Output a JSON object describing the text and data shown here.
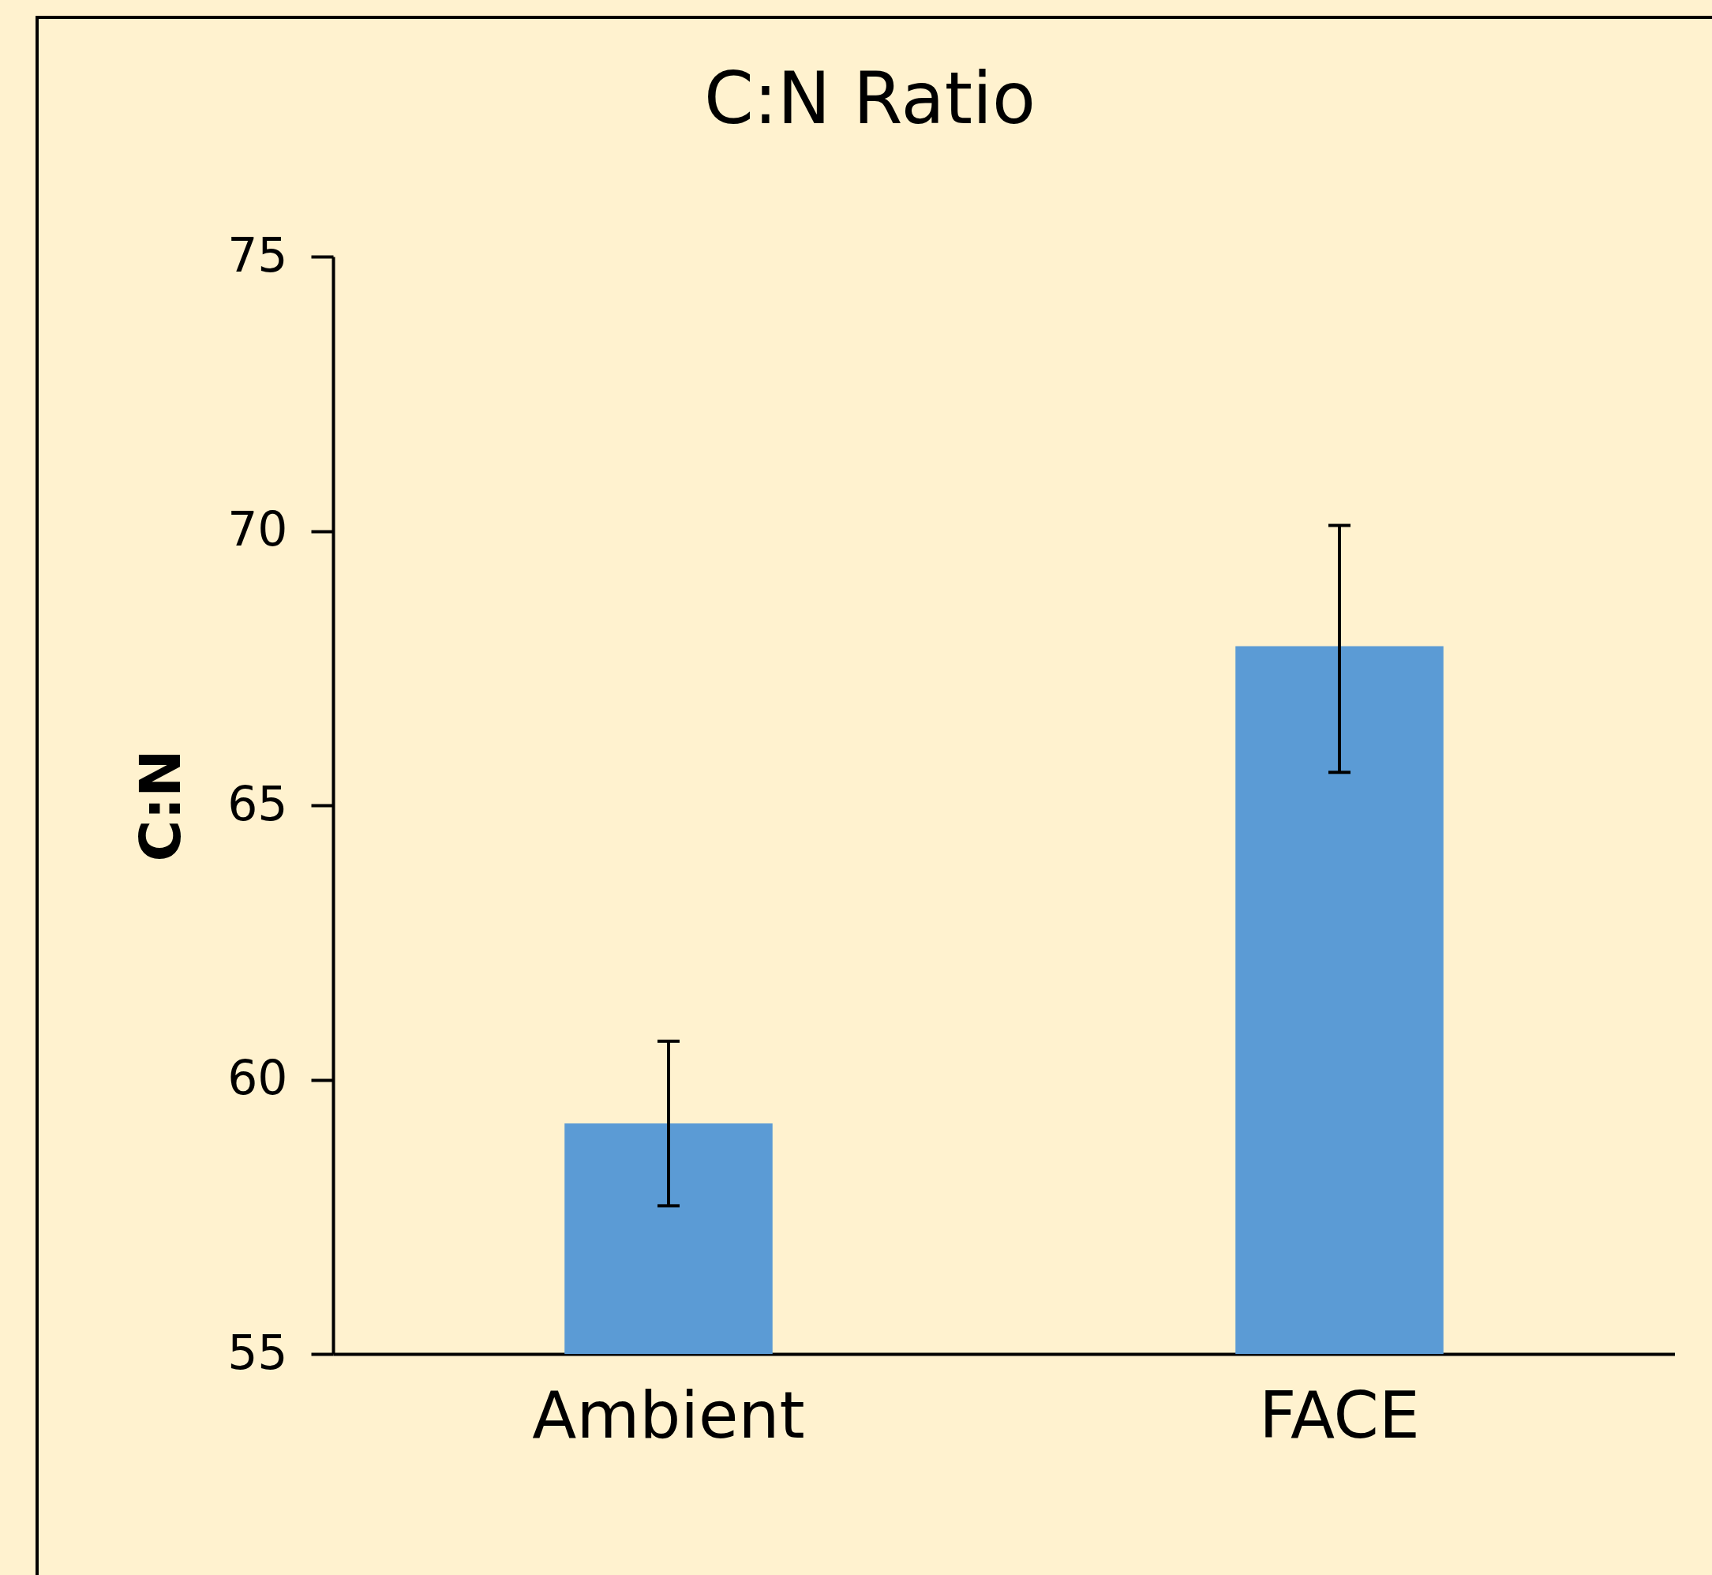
{
  "chart_data": {
    "type": "bar",
    "title": "C:N Ratio",
    "ylabel": "C:N",
    "categories": [
      "Ambient",
      "FACE"
    ],
    "values": [
      59.2,
      67.9
    ],
    "errors": [
      [
        57.7,
        60.7
      ],
      [
        65.6,
        70.1
      ]
    ],
    "color": "#5b9bd5",
    "ylim": [
      55,
      75
    ],
    "yticks": [
      55,
      60,
      65,
      70,
      75
    ],
    "grid": false
  }
}
